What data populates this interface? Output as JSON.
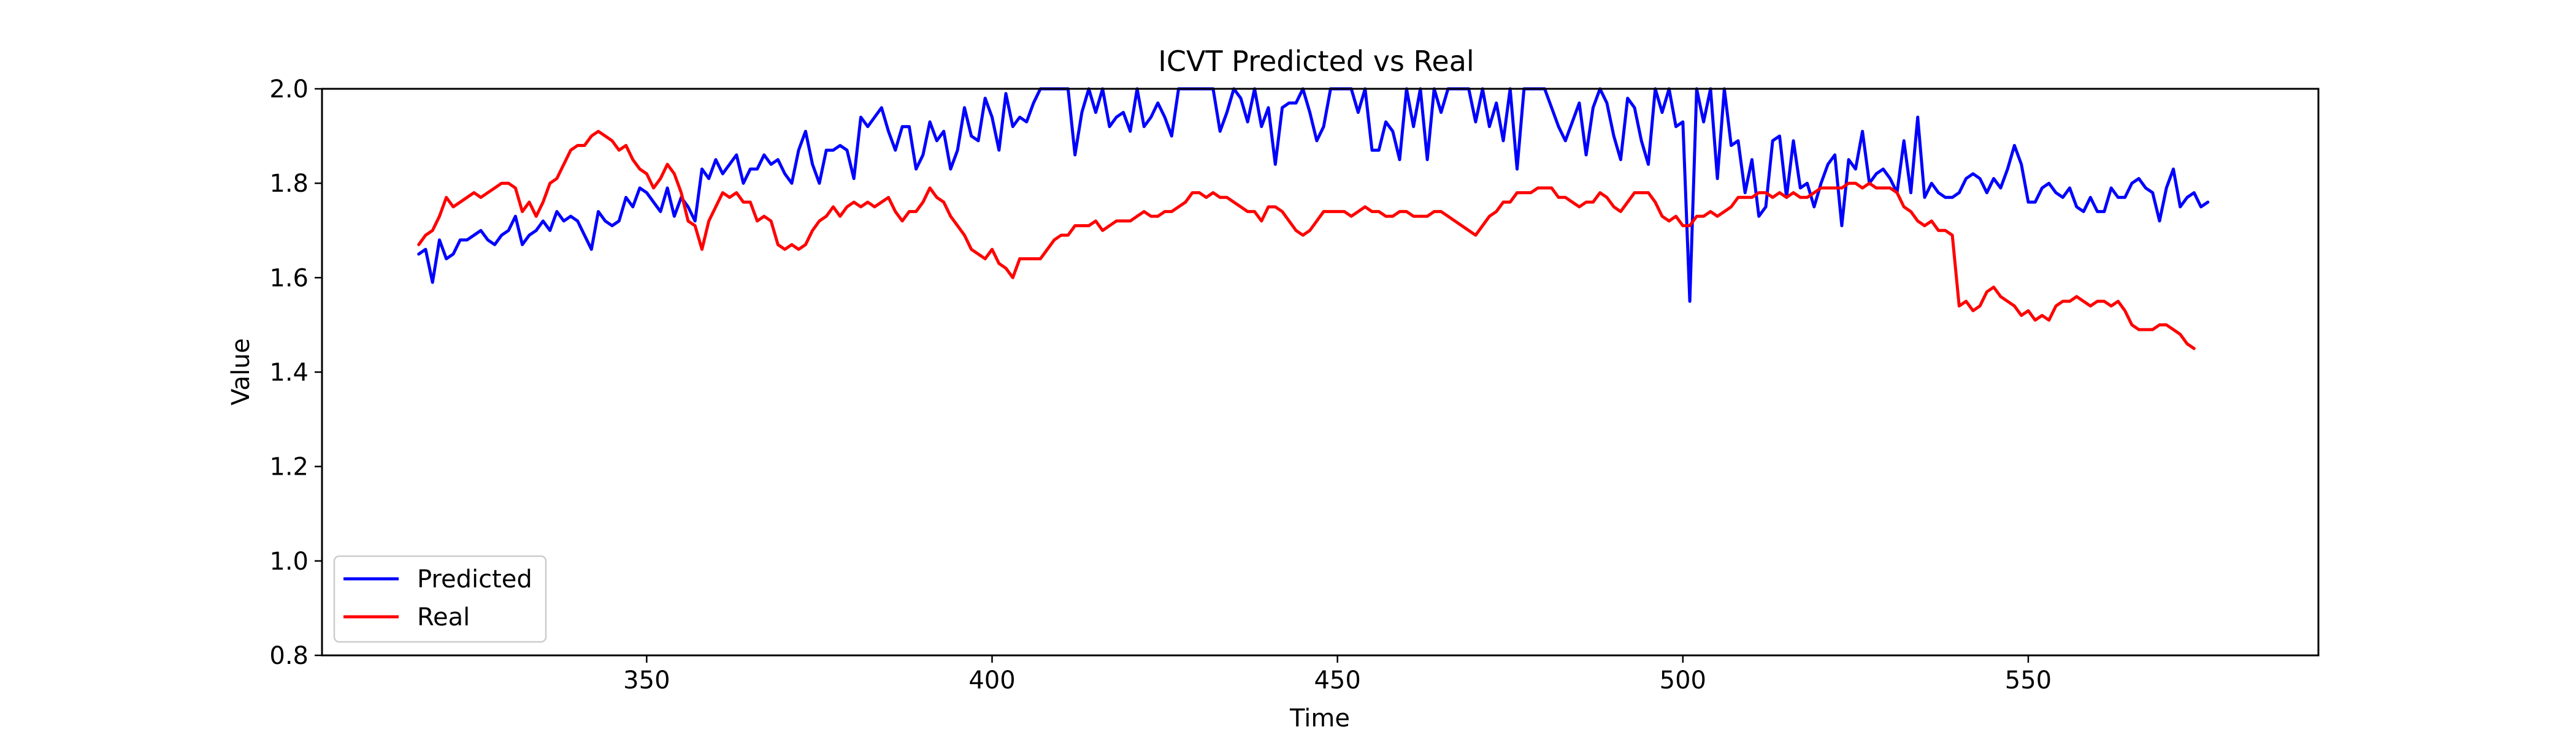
{
  "chart_data": {
    "type": "line",
    "title": "ICVT Predicted vs Real",
    "xlabel": "Time",
    "ylabel": "Value",
    "xlim": [
      303,
      592
    ],
    "ylim": [
      0.8,
      2.0
    ],
    "xticks": [
      350,
      400,
      450,
      500,
      550
    ],
    "yticks": [
      0.8,
      1.0,
      1.2,
      1.4,
      1.6,
      1.8,
      2.0
    ],
    "xtick_labels": [
      "350",
      "400",
      "450",
      "500",
      "550"
    ],
    "ytick_labels": [
      "0.8",
      "1.0",
      "1.2",
      "1.4",
      "1.6",
      "1.8",
      "2.0"
    ],
    "grid": false,
    "legend": "lower-left",
    "x_start": 317,
    "x_step": 1,
    "series": [
      {
        "name": "Predicted",
        "color": "#0000ff",
        "values": [
          1.65,
          1.66,
          1.59,
          1.68,
          1.64,
          1.65,
          1.68,
          1.68,
          1.69,
          1.7,
          1.68,
          1.67,
          1.69,
          1.7,
          1.73,
          1.67,
          1.69,
          1.7,
          1.72,
          1.7,
          1.74,
          1.72,
          1.73,
          1.72,
          1.69,
          1.66,
          1.74,
          1.72,
          1.71,
          1.72,
          1.77,
          1.75,
          1.79,
          1.78,
          1.76,
          1.74,
          1.79,
          1.73,
          1.77,
          1.75,
          1.72,
          1.83,
          1.81,
          1.85,
          1.82,
          1.84,
          1.86,
          1.8,
          1.83,
          1.83,
          1.86,
          1.84,
          1.85,
          1.82,
          1.8,
          1.87,
          1.91,
          1.84,
          1.8,
          1.87,
          1.87,
          1.88,
          1.87,
          1.81,
          1.94,
          1.92,
          1.94,
          1.96,
          1.91,
          1.87,
          1.92,
          1.92,
          1.83,
          1.86,
          1.93,
          1.89,
          1.91,
          1.83,
          1.87,
          1.96,
          1.9,
          1.89,
          1.98,
          1.94,
          1.87,
          1.99,
          1.92,
          1.94,
          1.93,
          1.97,
          2.0,
          2.0,
          2.0,
          2.0,
          2.0,
          1.86,
          1.95,
          2.0,
          1.95,
          2.0,
          1.92,
          1.94,
          1.95,
          1.91,
          2.0,
          1.92,
          1.94,
          1.97,
          1.94,
          1.9,
          2.0,
          2.0,
          2.0,
          2.0,
          2.0,
          2.0,
          1.91,
          1.95,
          2.0,
          1.98,
          1.93,
          2.0,
          1.92,
          1.96,
          1.84,
          1.96,
          1.97,
          1.97,
          2.0,
          1.95,
          1.89,
          1.92,
          2.0,
          2.0,
          2.0,
          2.0,
          1.95,
          2.0,
          1.87,
          1.87,
          1.93,
          1.91,
          1.85,
          2.0,
          1.92,
          2.0,
          1.85,
          2.0,
          1.95,
          2.0,
          2.0,
          2.0,
          2.0,
          1.93,
          2.0,
          1.92,
          1.97,
          1.89,
          2.0,
          1.83,
          2.0,
          2.0,
          2.0,
          2.0,
          1.96,
          1.92,
          1.89,
          1.93,
          1.97,
          1.86,
          1.96,
          2.0,
          1.97,
          1.9,
          1.85,
          1.98,
          1.96,
          1.89,
          1.84,
          2.0,
          1.95,
          2.0,
          1.92,
          1.93,
          1.55,
          2.0,
          1.93,
          2.0,
          1.81,
          2.0,
          1.88,
          1.89,
          1.78,
          1.85,
          1.73,
          1.75,
          1.89,
          1.9,
          1.77,
          1.89,
          1.79,
          1.8,
          1.75,
          1.8,
          1.84,
          1.86,
          1.71,
          1.85,
          1.83,
          1.91,
          1.8,
          1.82,
          1.83,
          1.81,
          1.78,
          1.89,
          1.78,
          1.94,
          1.77,
          1.8,
          1.78,
          1.77,
          1.77,
          1.78,
          1.81,
          1.82,
          1.81,
          1.78,
          1.81,
          1.79,
          1.83,
          1.88,
          1.84,
          1.76,
          1.76,
          1.79,
          1.8,
          1.78,
          1.77,
          1.79,
          1.75,
          1.74,
          1.77,
          1.74,
          1.74,
          1.79,
          1.77,
          1.77,
          1.8,
          1.81,
          1.79,
          1.78,
          1.72,
          1.79,
          1.83,
          1.75,
          1.77,
          1.78,
          1.75,
          1.76
        ]
      },
      {
        "name": "Real",
        "color": "#ff0000",
        "values": [
          1.67,
          1.69,
          1.7,
          1.73,
          1.77,
          1.75,
          1.76,
          1.77,
          1.78,
          1.77,
          1.78,
          1.79,
          1.8,
          1.8,
          1.79,
          1.74,
          1.76,
          1.73,
          1.76,
          1.8,
          1.81,
          1.84,
          1.87,
          1.88,
          1.88,
          1.9,
          1.91,
          1.9,
          1.89,
          1.87,
          1.88,
          1.85,
          1.83,
          1.82,
          1.79,
          1.81,
          1.84,
          1.82,
          1.78,
          1.72,
          1.71,
          1.66,
          1.72,
          1.75,
          1.78,
          1.77,
          1.78,
          1.76,
          1.76,
          1.72,
          1.73,
          1.72,
          1.67,
          1.66,
          1.67,
          1.66,
          1.67,
          1.7,
          1.72,
          1.73,
          1.75,
          1.73,
          1.75,
          1.76,
          1.75,
          1.76,
          1.75,
          1.76,
          1.77,
          1.74,
          1.72,
          1.74,
          1.74,
          1.76,
          1.79,
          1.77,
          1.76,
          1.73,
          1.71,
          1.69,
          1.66,
          1.65,
          1.64,
          1.66,
          1.63,
          1.62,
          1.6,
          1.64,
          1.64,
          1.64,
          1.64,
          1.66,
          1.68,
          1.69,
          1.69,
          1.71,
          1.71,
          1.71,
          1.72,
          1.7,
          1.71,
          1.72,
          1.72,
          1.72,
          1.73,
          1.74,
          1.73,
          1.73,
          1.74,
          1.74,
          1.75,
          1.76,
          1.78,
          1.78,
          1.77,
          1.78,
          1.77,
          1.77,
          1.76,
          1.75,
          1.74,
          1.74,
          1.72,
          1.75,
          1.75,
          1.74,
          1.72,
          1.7,
          1.69,
          1.7,
          1.72,
          1.74,
          1.74,
          1.74,
          1.74,
          1.73,
          1.74,
          1.75,
          1.74,
          1.74,
          1.73,
          1.73,
          1.74,
          1.74,
          1.73,
          1.73,
          1.73,
          1.74,
          1.74,
          1.73,
          1.72,
          1.71,
          1.7,
          1.69,
          1.71,
          1.73,
          1.74,
          1.76,
          1.76,
          1.78,
          1.78,
          1.78,
          1.79,
          1.79,
          1.79,
          1.77,
          1.77,
          1.76,
          1.75,
          1.76,
          1.76,
          1.78,
          1.77,
          1.75,
          1.74,
          1.76,
          1.78,
          1.78,
          1.78,
          1.76,
          1.73,
          1.72,
          1.73,
          1.71,
          1.71,
          1.73,
          1.73,
          1.74,
          1.73,
          1.74,
          1.75,
          1.77,
          1.77,
          1.77,
          1.78,
          1.78,
          1.77,
          1.78,
          1.77,
          1.78,
          1.77,
          1.77,
          1.78,
          1.79,
          1.79,
          1.79,
          1.79,
          1.8,
          1.8,
          1.79,
          1.8,
          1.79,
          1.79,
          1.79,
          1.78,
          1.75,
          1.74,
          1.72,
          1.71,
          1.72,
          1.7,
          1.7,
          1.69,
          1.54,
          1.55,
          1.53,
          1.54,
          1.57,
          1.58,
          1.56,
          1.55,
          1.54,
          1.52,
          1.53,
          1.51,
          1.52,
          1.51,
          1.54,
          1.55,
          1.55,
          1.56,
          1.55,
          1.54,
          1.55,
          1.55,
          1.54,
          1.55,
          1.53,
          1.5,
          1.49,
          1.49,
          1.49,
          1.5,
          1.5,
          1.49,
          1.48,
          1.46,
          1.45
        ]
      }
    ]
  }
}
